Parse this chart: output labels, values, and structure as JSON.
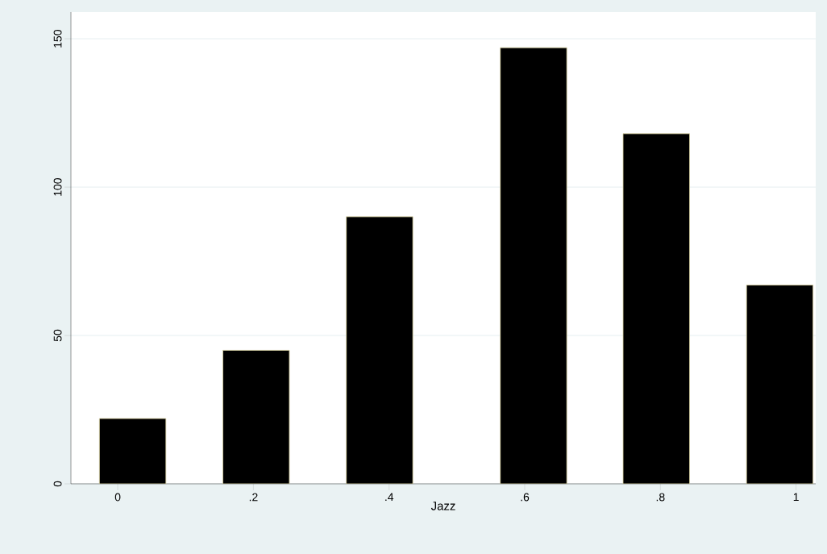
{
  "chart_data": {
    "type": "bar",
    "xlabel": "Jazz",
    "x": [
      0.022,
      0.204,
      0.386,
      0.613,
      0.794,
      0.976
    ],
    "values": [
      22,
      45,
      90,
      147,
      118,
      67
    ],
    "color": "#000000",
    "xlim": [
      -0.069,
      1.029
    ],
    "ylim": [
      0,
      159
    ],
    "xticks": [
      0,
      {
        "value": 0.2,
        "label": ".2"
      },
      {
        "value": 0.4,
        "label": ".4"
      },
      {
        "value": 0.6,
        "label": ".6"
      },
      {
        "value": 0.8,
        "label": ".8"
      },
      1
    ],
    "yticks": [
      0,
      50,
      100,
      150
    ],
    "grid": "y"
  }
}
